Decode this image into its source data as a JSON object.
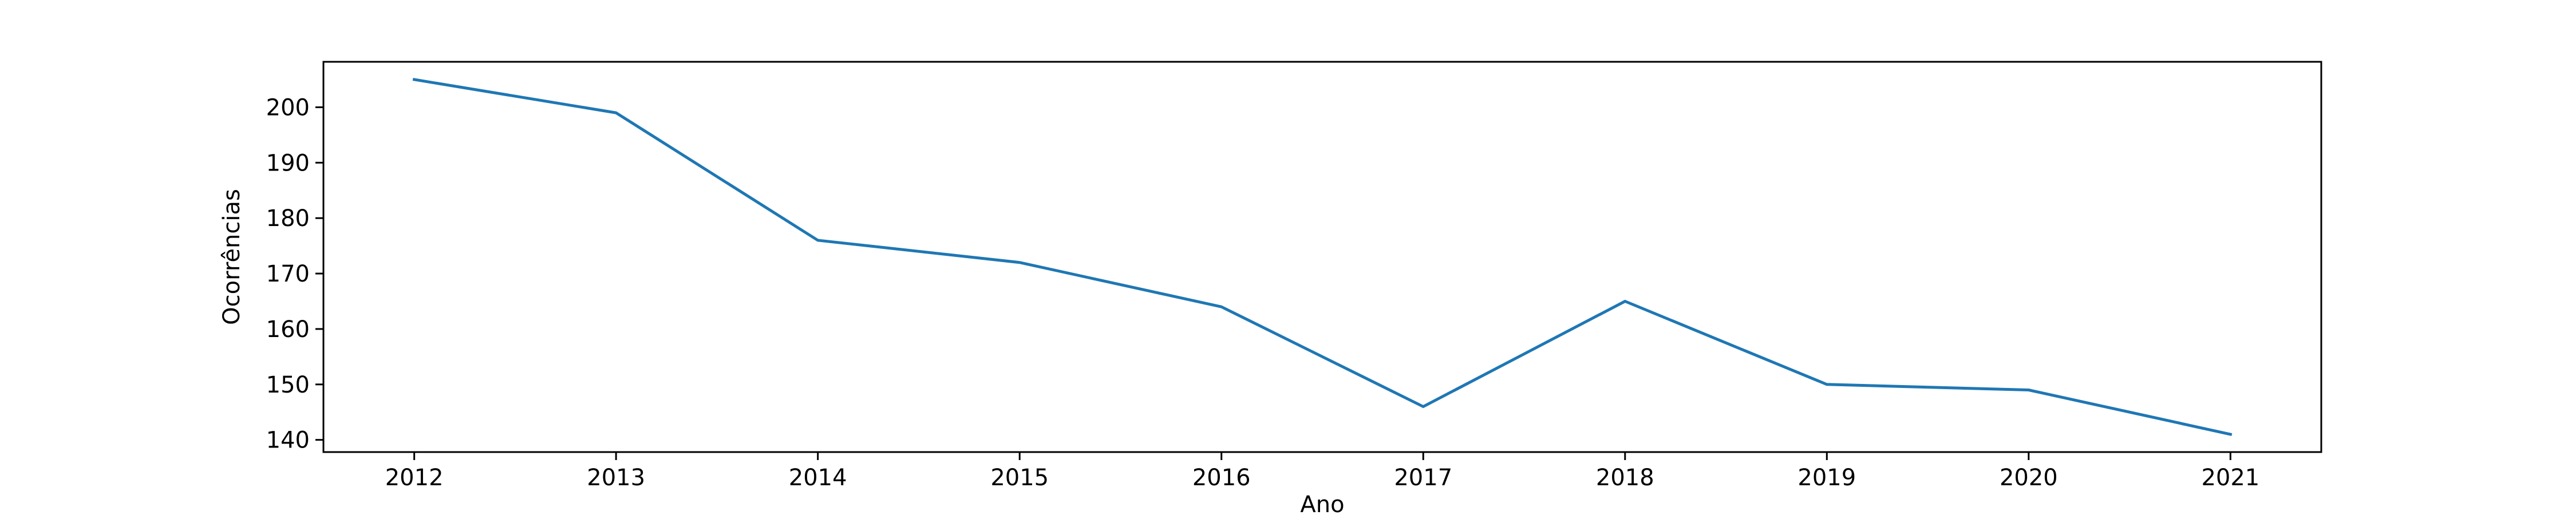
{
  "chart_data": {
    "type": "line",
    "title": "",
    "xlabel": "Ano",
    "ylabel": "Ocorrências",
    "categories": [
      "2012",
      "2013",
      "2014",
      "2015",
      "2016",
      "2017",
      "2018",
      "2019",
      "2020",
      "2021"
    ],
    "x": [
      2012,
      2013,
      2014,
      2015,
      2016,
      2017,
      2018,
      2019,
      2020,
      2021
    ],
    "series": [
      {
        "values": [
          205,
          199,
          176,
          172,
          164,
          146,
          165,
          150,
          149,
          141
        ],
        "color": "#1f77b4"
      }
    ],
    "xlim": [
      2011.55,
      2021.45
    ],
    "ylim": [
      137.8,
      208.2
    ],
    "yticks": [
      140,
      150,
      160,
      170,
      180,
      190,
      200
    ],
    "grid": false,
    "legend": "none"
  }
}
